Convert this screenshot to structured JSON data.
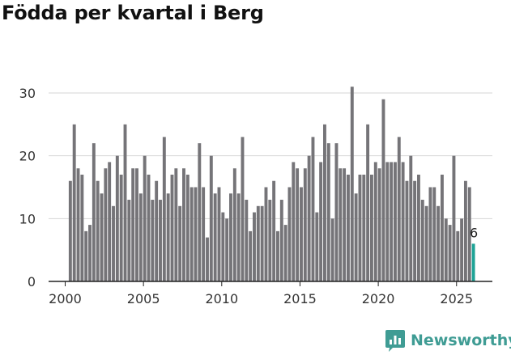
{
  "colors": {
    "bar": "#757478",
    "highlight": "#1ea396",
    "grid": "#d6d6d6",
    "axis": "#222222",
    "brand": "#3f9c94"
  },
  "brand": {
    "name": "Newsworthy",
    "icon": "bar-chart-speech-bubble-icon"
  },
  "chart_data": {
    "type": "bar",
    "title": "Födda per kvartal i Berg",
    "xlabel": "",
    "ylabel": "",
    "ylim": [
      0,
      32
    ],
    "yticks": [
      0,
      10,
      20,
      30
    ],
    "xticks": [
      "2000",
      "2005",
      "2010",
      "2015",
      "2020",
      "2025"
    ],
    "grid": true,
    "start_year": 2000,
    "start_quarter": 1,
    "values": [
      16,
      25,
      18,
      17,
      8,
      9,
      22,
      16,
      14,
      18,
      19,
      12,
      20,
      17,
      25,
      13,
      18,
      18,
      14,
      20,
      17,
      13,
      16,
      13,
      23,
      14,
      17,
      18,
      12,
      18,
      17,
      15,
      15,
      22,
      15,
      7,
      20,
      14,
      15,
      11,
      10,
      14,
      18,
      14,
      23,
      13,
      8,
      11,
      12,
      12,
      15,
      13,
      16,
      8,
      13,
      9,
      15,
      19,
      18,
      15,
      18,
      20,
      23,
      11,
      19,
      25,
      22,
      10,
      22,
      18,
      18,
      17,
      31,
      14,
      17,
      17,
      25,
      17,
      19,
      18,
      29,
      19,
      19,
      19,
      23,
      19,
      16,
      20,
      16,
      17,
      13,
      12,
      15,
      15,
      12,
      17,
      10,
      9,
      20,
      8,
      10,
      16,
      15,
      6
    ],
    "highlight_label": "6",
    "highlight_index": 103
  }
}
